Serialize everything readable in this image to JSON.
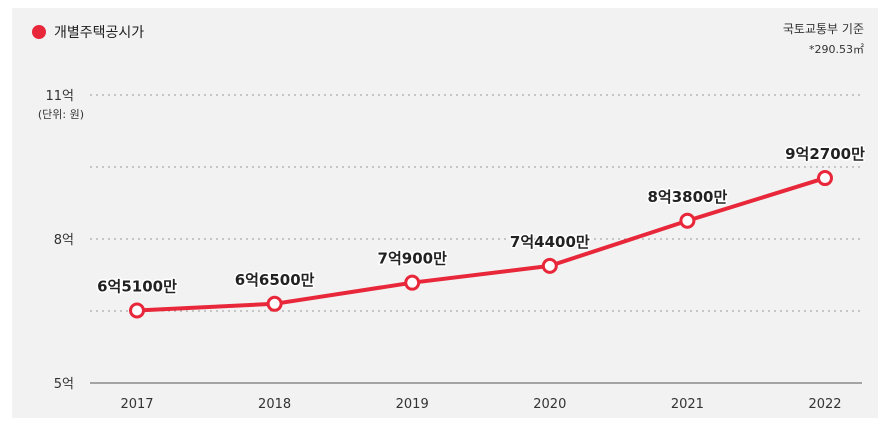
{
  "legend": {
    "label": "개별주택공시가",
    "color": "#e8283a"
  },
  "source": {
    "line1": "국토교통부 기준",
    "line2": "*290.53㎡"
  },
  "chart_data": {
    "type": "line",
    "title": "",
    "xlabel": "",
    "ylabel": "(단위: 원)",
    "ylim": [
      500000000,
      1100000000
    ],
    "y_ticks": [
      {
        "value": 1100000000,
        "label": "11억"
      },
      {
        "value": 800000000,
        "label": "8억"
      },
      {
        "value": 500000000,
        "label": "5억"
      }
    ],
    "grid": "dotted-horizontal",
    "x": [
      "2017",
      "2018",
      "2019",
      "2020",
      "2021",
      "2022"
    ],
    "series": [
      {
        "name": "개별주택공시가",
        "color": "#e8283a",
        "values": [
          651000000,
          665000000,
          709000000,
          744000000,
          838000000,
          927000000
        ],
        "labels": [
          "6억5100만",
          "6억6500만",
          "7억900만",
          "7억4400만",
          "8억3800만",
          "9억2700만"
        ]
      }
    ]
  }
}
